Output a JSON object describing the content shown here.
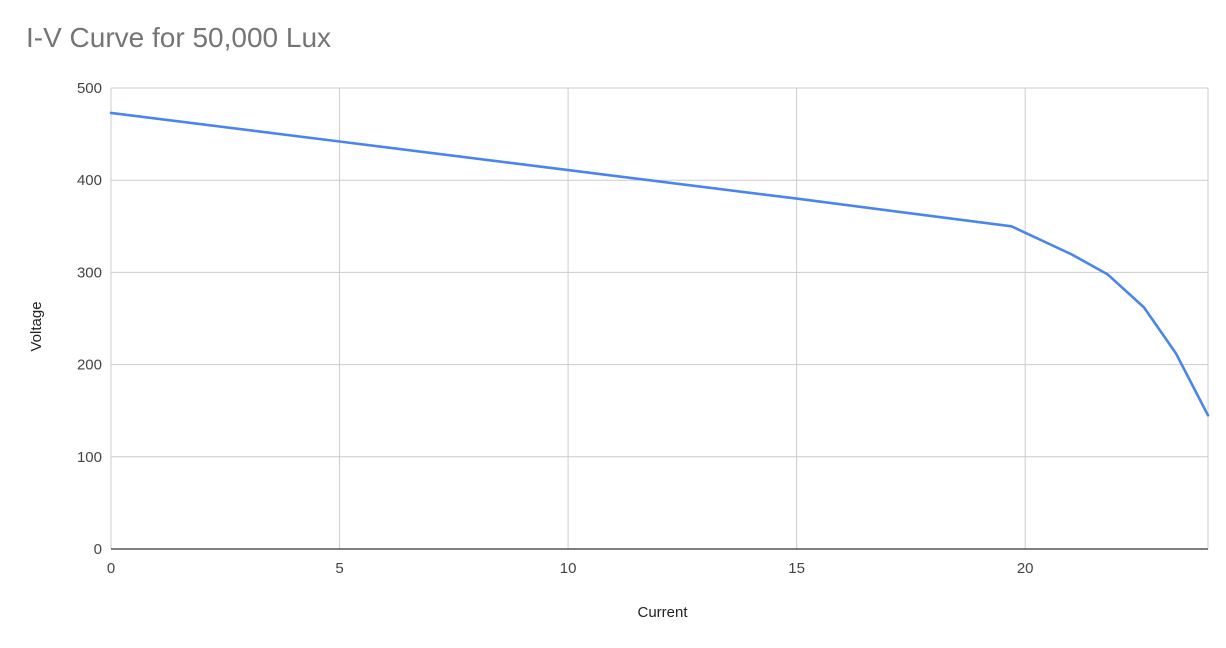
{
  "chart_data": {
    "type": "line",
    "title": "I-V Curve for 50,000 Lux",
    "xlabel": "Current",
    "ylabel": "Voltage",
    "xlim": [
      0,
      24
    ],
    "ylim": [
      0,
      500
    ],
    "x_ticks": [
      0,
      5,
      10,
      15,
      20
    ],
    "y_ticks": [
      0,
      100,
      200,
      300,
      400,
      500
    ],
    "grid": true,
    "legend": "none",
    "series": [
      {
        "color": "#4a86e8",
        "points": [
          {
            "x": 0,
            "y": 473
          },
          {
            "x": 5,
            "y": 442
          },
          {
            "x": 10,
            "y": 411
          },
          {
            "x": 15,
            "y": 380
          },
          {
            "x": 19.7,
            "y": 350
          },
          {
            "x": 21,
            "y": 320
          },
          {
            "x": 21.8,
            "y": 298
          },
          {
            "x": 22.6,
            "y": 262
          },
          {
            "x": 23.3,
            "y": 212
          },
          {
            "x": 24,
            "y": 145
          }
        ]
      }
    ]
  }
}
